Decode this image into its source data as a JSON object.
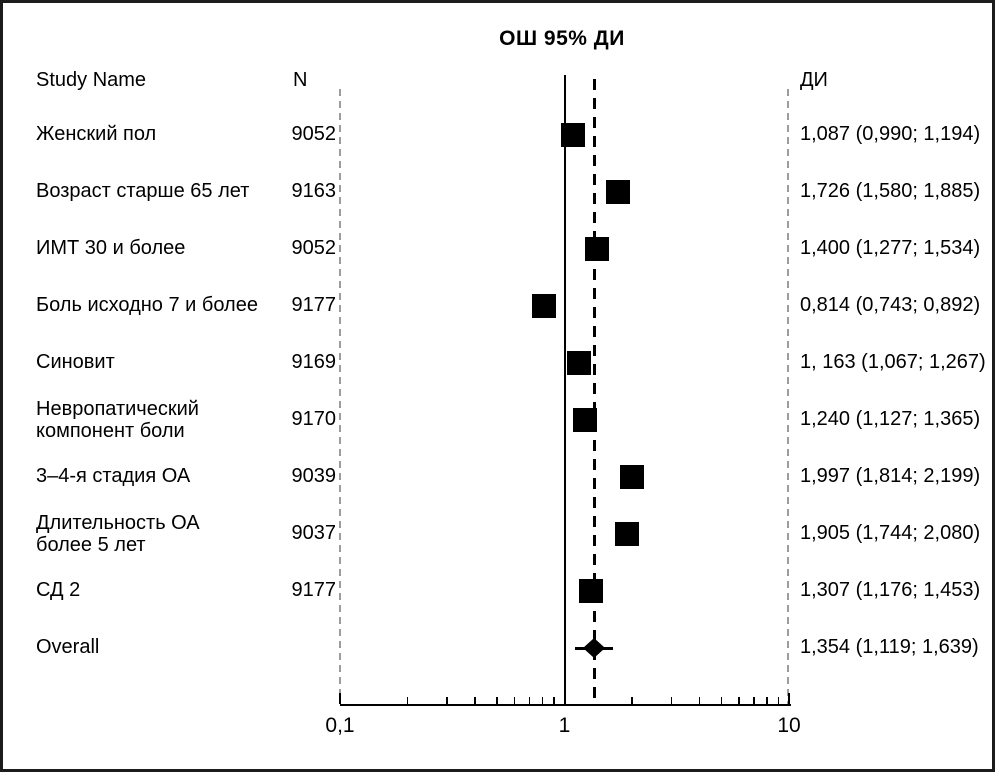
{
  "title": "ОШ 95% ДИ",
  "columns": {
    "study": "Study Name",
    "n": "N",
    "ci": "ДИ"
  },
  "chart_data": {
    "type": "forest",
    "x_scale": "log",
    "x_range": [
      0.1,
      10
    ],
    "reference_line": 1,
    "overall_line_value": 1.354,
    "axis": {
      "major_ticks": [
        {
          "value": 0.1,
          "label": "0,1"
        },
        {
          "value": 1,
          "label": "1"
        },
        {
          "value": 10,
          "label": "10"
        }
      ],
      "minor_ticks": [
        0.2,
        0.3,
        0.4,
        0.5,
        0.6,
        0.7,
        0.8,
        0.9,
        2,
        3,
        4,
        5,
        6,
        7,
        8,
        9
      ]
    },
    "rows": [
      {
        "study": "Женский пол",
        "n": "9052",
        "or": 1.087,
        "low": 0.99,
        "high": 1.194,
        "ci_label": "1,087 (0,990; 1,194)"
      },
      {
        "study": "Возраст старше 65 лет",
        "n": "9163",
        "or": 1.726,
        "low": 1.58,
        "high": 1.885,
        "ci_label": "1,726 (1,580; 1,885)"
      },
      {
        "study": "ИМТ 30 и более",
        "n": "9052",
        "or": 1.4,
        "low": 1.277,
        "high": 1.534,
        "ci_label": "1,400 (1,277; 1,534)"
      },
      {
        "study": "Боль исходно 7 и более",
        "n": "9177",
        "or": 0.814,
        "low": 0.743,
        "high": 0.892,
        "ci_label": "0,814 (0,743; 0,892)"
      },
      {
        "study": "Синовит",
        "n": "9169",
        "or": 1.163,
        "low": 1.067,
        "high": 1.267,
        "ci_label": "1, 163 (1,067; 1,267)"
      },
      {
        "study": "Невропатический\nкомпонент боли",
        "n": "9170",
        "or": 1.24,
        "low": 1.127,
        "high": 1.365,
        "ci_label": "1,240 (1,127; 1,365)"
      },
      {
        "study": "3–4-я стадия ОА",
        "n": "9039",
        "or": 1.997,
        "low": 1.814,
        "high": 2.199,
        "ci_label": "1,997 (1,814; 2,199)"
      },
      {
        "study": "Длительность ОА\nболее 5 лет",
        "n": "9037",
        "or": 1.905,
        "low": 1.744,
        "high": 2.08,
        "ci_label": "1,905 (1,744; 2,080)"
      },
      {
        "study": "СД 2",
        "n": "9177",
        "or": 1.307,
        "low": 1.176,
        "high": 1.453,
        "ci_label": "1,307 (1,176; 1,453)"
      },
      {
        "study": "Overall",
        "n": "",
        "or": 1.354,
        "low": 1.119,
        "high": 1.639,
        "ci_label": "1,354 (1,119; 1,639)",
        "is_overall": true
      }
    ]
  }
}
